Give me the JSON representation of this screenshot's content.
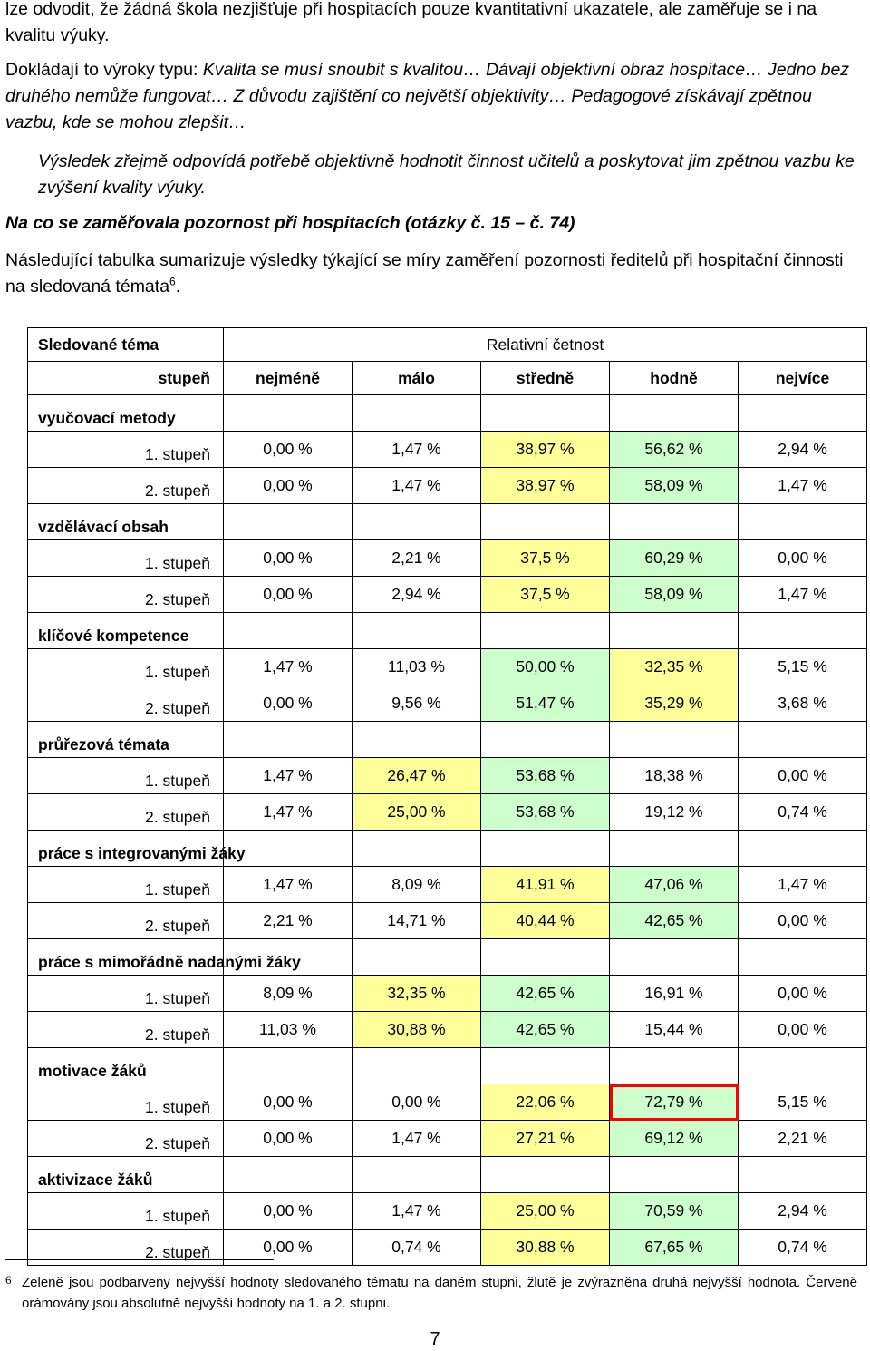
{
  "text": {
    "p1": "lze odvodit, že žádná škola nezjišťuje při hospitacích pouze kvantitativní ukazatele, ale zaměřuje se i na kvalitu výuky.",
    "p2_lead": "Dokládají to výroky typu: ",
    "p2_quotes": "Kvalita se musí snoubit s kvalitou… Dávají objektivní obraz hospitace… Jedno bez druhého nemůže fungovat… Z důvodu zajištění co největší objektivity… Pedagogové získávají zpětnou vazbu, kde se mohou zlepšit…",
    "p3": "Výsledek zřejmě odpovídá potřebě objektivně hodnotit činnost učitelů a poskytovat jim zpětnou vazbu ke zvýšení kvality výuky.",
    "heading": "Na co se zaměřovala pozornost při hospitacích (otázky č. 15 – č. 74)",
    "p4": "Následující tabulka sumarizuje výsledky týkající se míry zaměření pozornosti ředitelů při hospitační činnosti na sledovaná témata",
    "p4_sup": "6",
    "p4_end": ".",
    "footnote_mark": "6",
    "footnote": "Zeleně jsou podbarveny nejvyšší hodnoty sledovaného tématu na daném stupni, žlutě je zvýrazněna druhá nejvyšší hodnota. Červeně orámovány jsou absolutně nejvyšší hodnoty na 1. a 2. stupni.",
    "page_number": "7"
  },
  "table": {
    "head_topic": "Sledované téma",
    "head_freq": "Relativní četnost",
    "head_level": "stupeň",
    "columns": [
      "nejméně",
      "málo",
      "středně",
      "hodně",
      "nejvíce"
    ],
    "colors": {
      "green": "#ccffcc",
      "yellow": "#ffff99",
      "red": "#ff0000"
    },
    "topics": [
      {
        "name": "vyučovací metody",
        "rows": [
          {
            "level": "1. stupeň",
            "values": [
              "0,00 %",
              "1,47 %",
              "38,97 %",
              "56,62 %",
              "2,94 %"
            ],
            "marks": [
              "",
              "",
              "yellow",
              "green",
              ""
            ]
          },
          {
            "level": "2. stupeň",
            "values": [
              "0,00 %",
              "1,47 %",
              "38,97 %",
              "58,09 %",
              "1,47 %"
            ],
            "marks": [
              "",
              "",
              "yellow",
              "green",
              ""
            ]
          }
        ]
      },
      {
        "name": "vzdělávací obsah",
        "rows": [
          {
            "level": "1. stupeň",
            "values": [
              "0,00 %",
              "2,21 %",
              "37,5 %",
              "60,29 %",
              "0,00 %"
            ],
            "marks": [
              "",
              "",
              "yellow",
              "green",
              ""
            ]
          },
          {
            "level": "2. stupeň",
            "values": [
              "0,00 %",
              "2,94 %",
              "37,5 %",
              "58,09 %",
              "1,47 %"
            ],
            "marks": [
              "",
              "",
              "yellow",
              "green",
              ""
            ]
          }
        ]
      },
      {
        "name": "klíčové kompetence",
        "rows": [
          {
            "level": "1. stupeň",
            "values": [
              "1,47 %",
              "11,03 %",
              "50,00 %",
              "32,35 %",
              "5,15 %"
            ],
            "marks": [
              "",
              "",
              "green",
              "yellow",
              ""
            ]
          },
          {
            "level": "2. stupeň",
            "values": [
              "0,00 %",
              "9,56 %",
              "51,47 %",
              "35,29 %",
              "3,68 %"
            ],
            "marks": [
              "",
              "",
              "green",
              "yellow",
              ""
            ]
          }
        ]
      },
      {
        "name": "průřezová témata",
        "rows": [
          {
            "level": "1. stupeň",
            "values": [
              "1,47 %",
              "26,47 %",
              "53,68 %",
              "18,38 %",
              "0,00 %"
            ],
            "marks": [
              "",
              "yellow",
              "green",
              "",
              ""
            ]
          },
          {
            "level": "2. stupeň",
            "values": [
              "1,47 %",
              "25,00 %",
              "53,68 %",
              "19,12 %",
              "0,74 %"
            ],
            "marks": [
              "",
              "yellow",
              "green",
              "",
              ""
            ]
          }
        ]
      },
      {
        "name": "práce s integrovanými žáky",
        "rows": [
          {
            "level": "1. stupeň",
            "values": [
              "1,47 %",
              "8,09 %",
              "41,91 %",
              "47,06 %",
              "1,47 %"
            ],
            "marks": [
              "",
              "",
              "yellow",
              "green",
              ""
            ]
          },
          {
            "level": "2. stupeň",
            "values": [
              "2,21 %",
              "14,71 %",
              "40,44 %",
              "42,65 %",
              "0,00 %"
            ],
            "marks": [
              "",
              "",
              "yellow",
              "green",
              ""
            ]
          }
        ]
      },
      {
        "name": "práce s mimořádně nadanými žáky",
        "rows": [
          {
            "level": "1. stupeň",
            "values": [
              "8,09 %",
              "32,35 %",
              "42,65 %",
              "16,91 %",
              "0,00 %"
            ],
            "marks": [
              "",
              "yellow",
              "green",
              "",
              ""
            ]
          },
          {
            "level": "2. stupeň",
            "values": [
              "11,03 %",
              "30,88 %",
              "42,65 %",
              "15,44 %",
              "0,00 %"
            ],
            "marks": [
              "",
              "yellow",
              "green",
              "",
              ""
            ]
          }
        ]
      },
      {
        "name": "motivace žáků",
        "rows": [
          {
            "level": "1. stupeň",
            "values": [
              "0,00 %",
              "0,00 %",
              "22,06 %",
              "72,79 %",
              "5,15 %"
            ],
            "marks": [
              "",
              "",
              "yellow",
              "green red",
              ""
            ]
          },
          {
            "level": "2. stupeň",
            "values": [
              "0,00 %",
              "1,47 %",
              "27,21 %",
              "69,12 %",
              "2,21 %"
            ],
            "marks": [
              "",
              "",
              "yellow",
              "green",
              ""
            ]
          }
        ]
      },
      {
        "name": "aktivizace žáků",
        "rows": [
          {
            "level": "1. stupeň",
            "values": [
              "0,00 %",
              "1,47 %",
              "25,00 %",
              "70,59 %",
              "2,94 %"
            ],
            "marks": [
              "",
              "",
              "yellow",
              "green",
              ""
            ]
          },
          {
            "level": "2. stupeň",
            "values": [
              "0,00 %",
              "0,74 %",
              "30,88 %",
              "67,65 %",
              "0,74 %"
            ],
            "marks": [
              "",
              "",
              "yellow",
              "green",
              ""
            ]
          }
        ]
      }
    ]
  }
}
